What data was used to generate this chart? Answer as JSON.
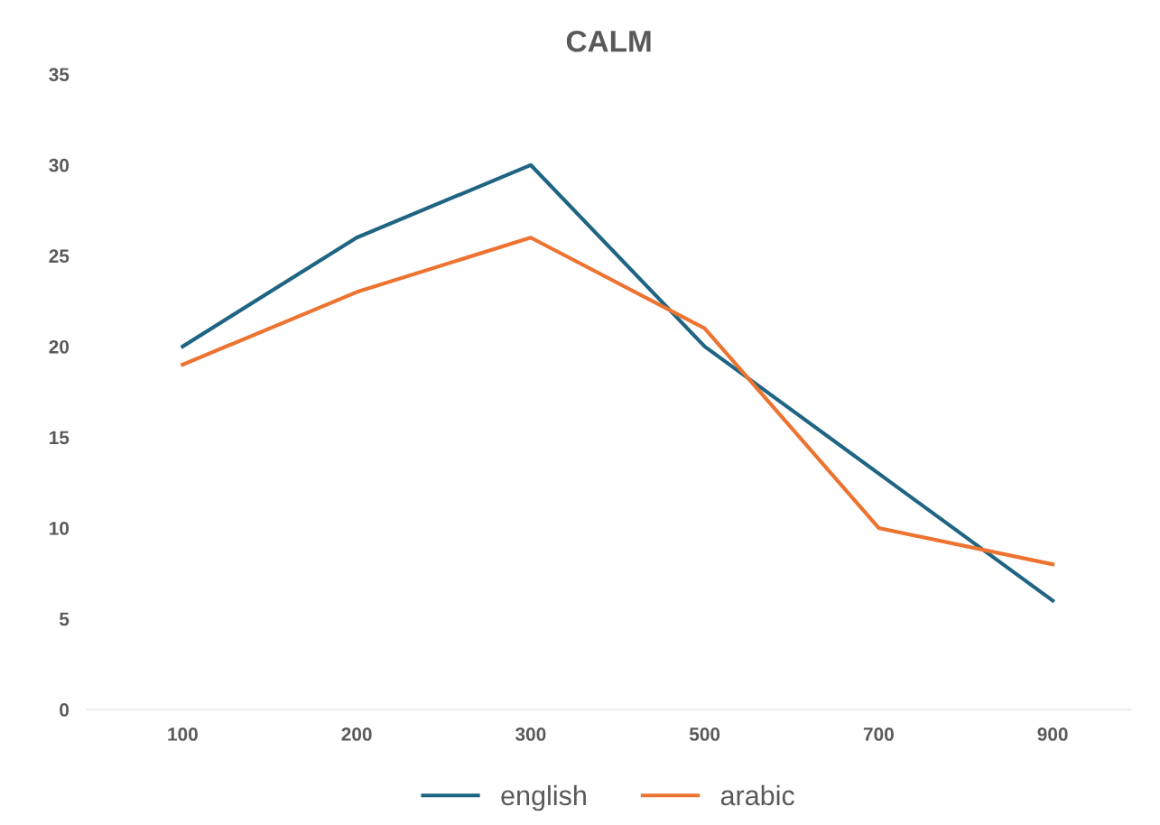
{
  "chart_data": {
    "type": "line",
    "title": "CALM",
    "categories": [
      "100",
      "200",
      "300",
      "500",
      "700",
      "900"
    ],
    "series": [
      {
        "name": "english",
        "color": "#1f6583",
        "values": [
          20,
          26,
          30,
          20,
          13,
          6
        ]
      },
      {
        "name": "arabic",
        "color": "#ed7331",
        "values": [
          19,
          23,
          26,
          21,
          10,
          8
        ]
      }
    ],
    "ylim": [
      0,
      35
    ],
    "yticks": [
      0,
      5,
      10,
      15,
      20,
      25,
      30,
      35
    ],
    "grid": false,
    "legend": "bottom",
    "marker": "none",
    "line_style": "solid"
  }
}
